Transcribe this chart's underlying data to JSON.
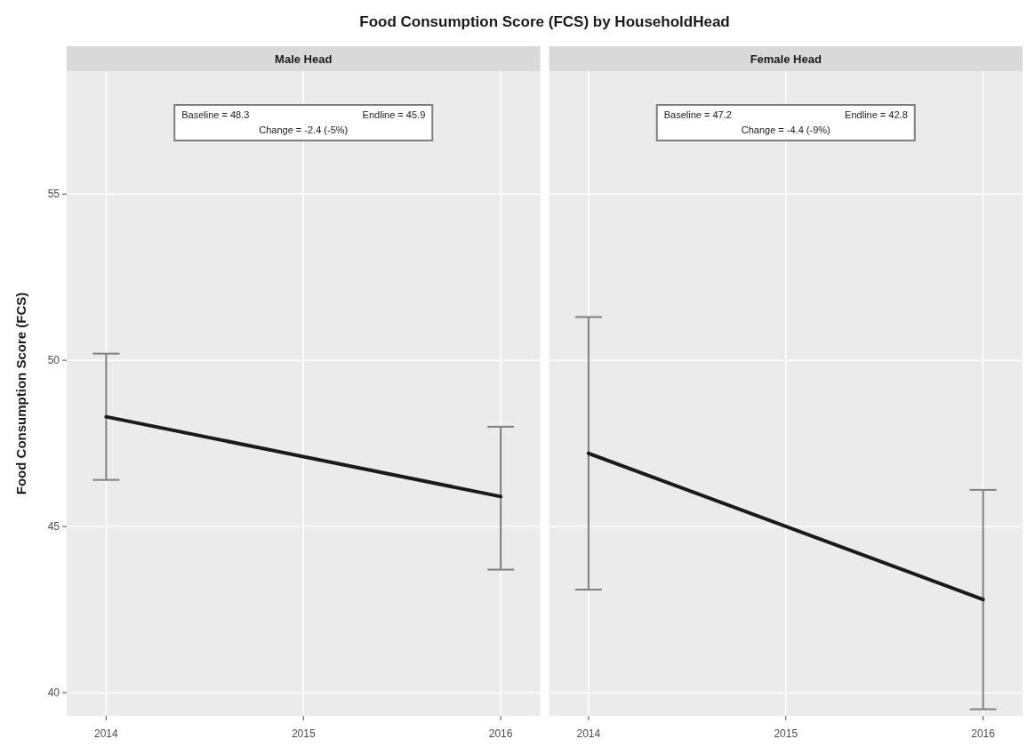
{
  "chart_data": [
    {
      "type": "line",
      "title": "Food Consumption Score (FCS) by HouseholdHead",
      "subtitle": "Male Head",
      "ylabel": "Food Consumption Score (FCS)",
      "annotations": [
        "Baseline = 48.3",
        "Endline = 45.9",
        "Change = -2.4 (-5%)"
      ],
      "x": [
        "2014",
        "2016"
      ],
      "series": [
        {
          "color": "#1a1a1a",
          "values": [
            48.3,
            45.9
          ],
          "errors": [
            [
              46.4,
              50.2
            ],
            [
              43.7,
              48.0
            ]
          ]
        }
      ],
      "xlim": [
        "2013-10-20",
        "2016-03-14"
      ],
      "xticks": [
        "2014",
        "2015",
        "2016"
      ],
      "ylim": [
        39.3,
        58.7
      ],
      "yticks": [
        40,
        45,
        50,
        55
      ],
      "grid": true
    },
    {
      "type": "line",
      "subtitle": "Female Head",
      "annotations": [
        "Baseline = 47.2",
        "Endline = 42.8",
        "Change = -4.4 (-9%)"
      ],
      "x": [
        "2014",
        "2016"
      ],
      "series": [
        {
          "color": "#1a1a1a",
          "values": [
            47.2,
            42.8
          ],
          "errors": [
            [
              43.1,
              51.3
            ],
            [
              39.5,
              46.1
            ]
          ]
        }
      ],
      "xlim": [
        "2013-10-20",
        "2016-03-14"
      ],
      "xticks": [
        "2014",
        "2015",
        "2016"
      ],
      "ylim": [
        39.3,
        58.7
      ],
      "yticks": [
        40,
        45,
        50,
        55
      ],
      "grid": true,
      "tick_labels": "x"
    }
  ]
}
